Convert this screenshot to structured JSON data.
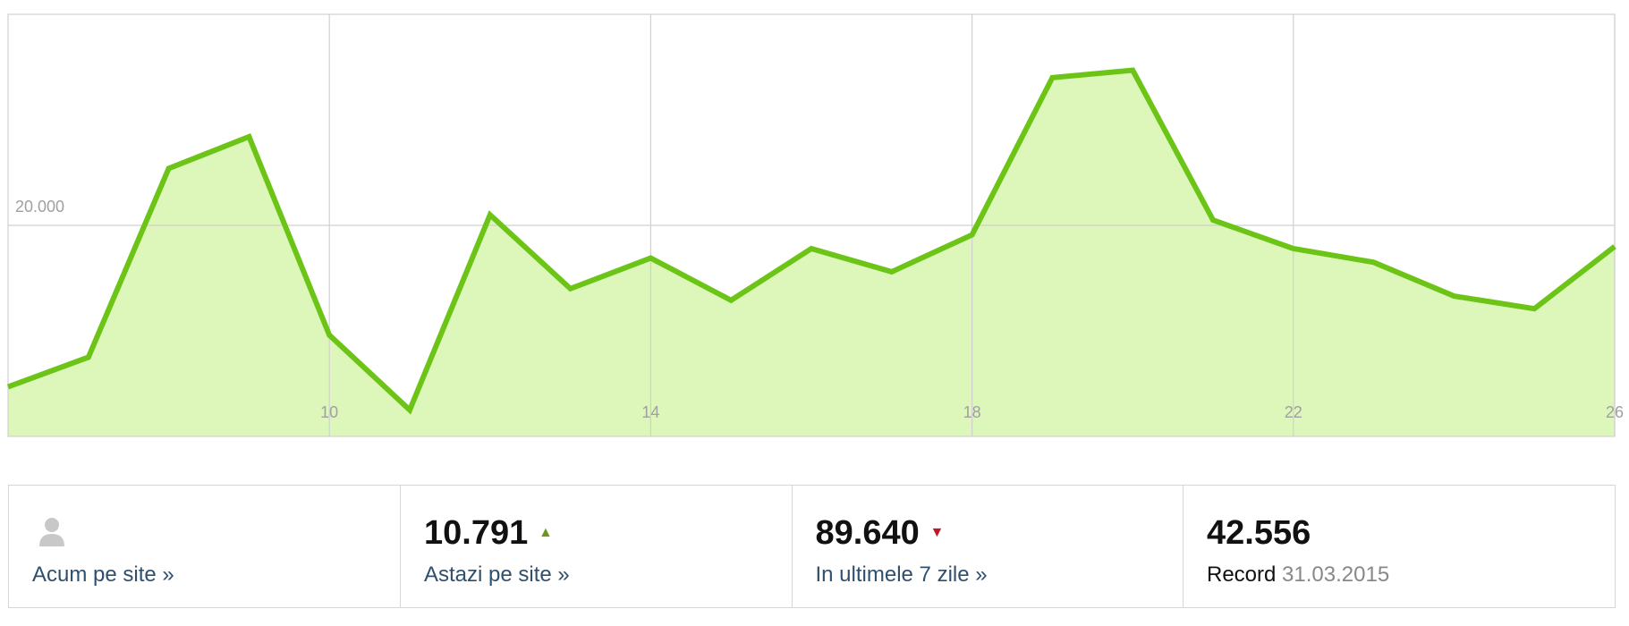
{
  "chart_data": {
    "type": "area",
    "x": [
      6,
      7,
      8,
      9,
      10,
      11,
      12,
      13,
      14,
      15,
      16,
      17,
      18,
      19,
      20,
      21,
      22,
      23,
      24,
      25,
      26
    ],
    "values": [
      4700,
      7500,
      25400,
      28400,
      9600,
      2500,
      21000,
      14000,
      16900,
      12900,
      17800,
      15600,
      19100,
      34000,
      34700,
      20500,
      17800,
      16500,
      13300,
      12100,
      18000
    ],
    "color": "#6cc417",
    "fill": "#dcf7b9",
    "xlim": [
      6,
      26
    ],
    "xticks": [
      10,
      14,
      18,
      22,
      26
    ],
    "ylim": [
      0,
      40000
    ],
    "yticks": [
      {
        "value": 20000,
        "label": "20.000"
      }
    ],
    "grid": true
  },
  "stats": [
    {
      "label": "Acum pe site »"
    },
    {
      "value": "10.791",
      "trend": "up",
      "label": "Astazi pe site »"
    },
    {
      "value": "89.640",
      "trend": "down",
      "label": "In ultimele 7 zile »"
    },
    {
      "value": "42.556",
      "label": "Record",
      "date": "31.03.2015"
    }
  ]
}
